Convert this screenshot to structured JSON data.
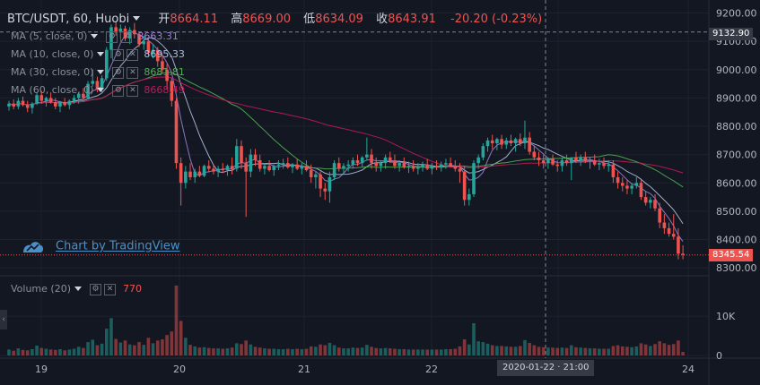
{
  "header": {
    "symbol": "BTC/USDT, 60, Huobi",
    "open_label": "开",
    "open": "8664.11",
    "high_label": "高",
    "high": "8669.00",
    "low_label": "低",
    "low": "8634.09",
    "close_label": "收",
    "close": "8643.91",
    "change": "-20.20 (-0.23%)"
  },
  "indicators": [
    {
      "label": "MA (5, close, 0)",
      "value": "8663.31",
      "color": "#9b7fd4"
    },
    {
      "label": "MA (10, close, 0)",
      "value": "8695.33",
      "color": "#b0bdde"
    },
    {
      "label": "MA (30, close, 0)",
      "value": "8681.81",
      "color": "#4caf50"
    },
    {
      "label": "MA (60, close, 0)",
      "value": "8668.49",
      "color": "#c2185b"
    }
  ],
  "volume_indicator": {
    "label": "Volume (20)",
    "value": "770"
  },
  "watermark": "Chart by TradingView",
  "crosshair_time": "2020-01-22 · 21:00",
  "icons": [
    "caret-down-icon",
    "gear-icon",
    "close-icon",
    "tradingview-logo-icon",
    "collapse-arrow-icon"
  ],
  "colors": {
    "up": "#26a69a",
    "down": "#ef5350",
    "background": "#131722"
  },
  "chart_data": {
    "type": "candlestick",
    "price_axis": {
      "ticks": [
        8300,
        8400,
        8500,
        8600,
        8700,
        8800,
        8900,
        9000,
        9100,
        9200
      ],
      "labels": [
        "8300.00",
        "8400.00",
        "8500.00",
        "8600.00",
        "8700.00",
        "8800.00",
        "8900.00",
        "9000.00",
        "9100.00",
        "9200.00"
      ],
      "ylim": [
        8272,
        9246
      ]
    },
    "volume_axis": {
      "ticks": [
        0,
        10000
      ],
      "labels": [
        "0",
        "10K"
      ],
      "ylim": [
        0,
        18000
      ]
    },
    "time_axis": {
      "labels": [
        "19",
        "20",
        "21",
        "22",
        "23",
        "24"
      ]
    },
    "current_price": "8345.54",
    "crosshair_price": "9132.90",
    "candles": [
      [
        8870,
        8890,
        8855,
        8880,
        1500
      ],
      [
        8880,
        8895,
        8860,
        8870,
        1200
      ],
      [
        8870,
        8900,
        8860,
        8890,
        1800
      ],
      [
        8890,
        8905,
        8870,
        8875,
        1400
      ],
      [
        8875,
        8890,
        8850,
        8865,
        1300
      ],
      [
        8865,
        8885,
        8845,
        8880,
        1600
      ],
      [
        8880,
        8920,
        8875,
        8910,
        2500
      ],
      [
        8910,
        8925,
        8880,
        8890,
        1900
      ],
      [
        8890,
        8905,
        8870,
        8900,
        1700
      ],
      [
        8900,
        8920,
        8880,
        8885,
        1500
      ],
      [
        8885,
        8900,
        8860,
        8870,
        1400
      ],
      [
        8870,
        8890,
        8850,
        8885,
        1600
      ],
      [
        8885,
        8900,
        8870,
        8875,
        1300
      ],
      [
        8875,
        8895,
        8860,
        8890,
        1500
      ],
      [
        8890,
        8910,
        8880,
        8900,
        1700
      ],
      [
        8900,
        8920,
        8880,
        8915,
        2200
      ],
      [
        8915,
        8935,
        8895,
        8900,
        1900
      ],
      [
        8900,
        8960,
        8895,
        8950,
        3400
      ],
      [
        8950,
        9000,
        8940,
        8960,
        4000
      ],
      [
        8960,
        8975,
        8920,
        8930,
        2600
      ],
      [
        8930,
        8980,
        8920,
        8970,
        3000
      ],
      [
        8970,
        9080,
        8960,
        9070,
        6800
      ],
      [
        9070,
        9160,
        9040,
        9150,
        9500
      ],
      [
        9150,
        9170,
        9120,
        9135,
        4200
      ],
      [
        9135,
        9160,
        9110,
        9145,
        3300
      ],
      [
        9145,
        9155,
        9100,
        9110,
        3800
      ],
      [
        9110,
        9150,
        9090,
        9140,
        2800
      ],
      [
        9140,
        9165,
        9110,
        9125,
        2600
      ],
      [
        9125,
        9135,
        9080,
        9090,
        3400
      ],
      [
        9090,
        9120,
        9070,
        9100,
        2700
      ],
      [
        9100,
        9110,
        9050,
        9060,
        4500
      ],
      [
        9060,
        9090,
        9040,
        9070,
        3100
      ],
      [
        9070,
        9080,
        9010,
        9030,
        3800
      ],
      [
        9030,
        9050,
        8990,
        9000,
        4100
      ],
      [
        9000,
        9020,
        8930,
        8960,
        5200
      ],
      [
        8960,
        8970,
        8870,
        8890,
        6100
      ],
      [
        8890,
        8900,
        8650,
        8670,
        17800
      ],
      [
        8670,
        8690,
        8520,
        8600,
        8800
      ],
      [
        8600,
        8660,
        8580,
        8640,
        4500
      ],
      [
        8640,
        8670,
        8610,
        8620,
        2700
      ],
      [
        8620,
        8650,
        8600,
        8640,
        2300
      ],
      [
        8640,
        8660,
        8620,
        8625,
        2000
      ],
      [
        8625,
        8665,
        8620,
        8660,
        2100
      ],
      [
        8660,
        8680,
        8640,
        8650,
        1900
      ],
      [
        8650,
        8665,
        8630,
        8640,
        1800
      ],
      [
        8640,
        8660,
        8620,
        8650,
        1800
      ],
      [
        8650,
        8670,
        8635,
        8645,
        1700
      ],
      [
        8645,
        8665,
        8625,
        8660,
        1800
      ],
      [
        8660,
        8690,
        8630,
        8650,
        2000
      ],
      [
        8650,
        8755,
        8640,
        8730,
        3100
      ],
      [
        8730,
        8750,
        8650,
        8670,
        2900
      ],
      [
        8670,
        8690,
        8480,
        8640,
        3800
      ],
      [
        8640,
        8720,
        8620,
        8700,
        2800
      ],
      [
        8700,
        8720,
        8660,
        8680,
        2200
      ],
      [
        8680,
        8700,
        8640,
        8650,
        2000
      ],
      [
        8650,
        8670,
        8630,
        8660,
        1800
      ],
      [
        8660,
        8680,
        8640,
        8645,
        1700
      ],
      [
        8645,
        8665,
        8625,
        8660,
        1700
      ],
      [
        8660,
        8680,
        8645,
        8665,
        1600
      ],
      [
        8665,
        8685,
        8650,
        8670,
        1600
      ],
      [
        8670,
        8690,
        8650,
        8655,
        1700
      ],
      [
        8655,
        8670,
        8635,
        8665,
        1600
      ],
      [
        8665,
        8685,
        8645,
        8650,
        1700
      ],
      [
        8650,
        8670,
        8630,
        8660,
        1600
      ],
      [
        8660,
        8680,
        8640,
        8645,
        1700
      ],
      [
        8645,
        8665,
        8600,
        8620,
        2300
      ],
      [
        8620,
        8640,
        8580,
        8630,
        2200
      ],
      [
        8630,
        8640,
        8550,
        8580,
        2800
      ],
      [
        8580,
        8600,
        8540,
        8570,
        2600
      ],
      [
        8570,
        8640,
        8530,
        8620,
        3200
      ],
      [
        8620,
        8680,
        8610,
        8670,
        2600
      ],
      [
        8670,
        8690,
        8640,
        8650,
        2000
      ],
      [
        8650,
        8670,
        8630,
        8660,
        1800
      ],
      [
        8660,
        8680,
        8640,
        8665,
        1800
      ],
      [
        8665,
        8690,
        8650,
        8680,
        2000
      ],
      [
        8680,
        8700,
        8660,
        8670,
        1900
      ],
      [
        8670,
        8695,
        8655,
        8690,
        2000
      ],
      [
        8690,
        8760,
        8680,
        8700,
        2700
      ],
      [
        8700,
        8720,
        8650,
        8670,
        2200
      ],
      [
        8670,
        8690,
        8640,
        8660,
        1900
      ],
      [
        8660,
        8680,
        8640,
        8670,
        1800
      ],
      [
        8670,
        8700,
        8650,
        8690,
        1900
      ],
      [
        8690,
        8710,
        8670,
        8680,
        1800
      ],
      [
        8680,
        8700,
        8650,
        8660,
        1700
      ],
      [
        8660,
        8680,
        8640,
        8670,
        1600
      ],
      [
        8670,
        8690,
        8650,
        8655,
        1600
      ],
      [
        8655,
        8675,
        8635,
        8660,
        1500
      ],
      [
        8660,
        8680,
        8640,
        8650,
        1500
      ],
      [
        8650,
        8670,
        8630,
        8655,
        1500
      ],
      [
        8655,
        8675,
        8640,
        8665,
        1500
      ],
      [
        8665,
        8685,
        8645,
        8650,
        1500
      ],
      [
        8650,
        8670,
        8630,
        8660,
        1500
      ],
      [
        8660,
        8680,
        8645,
        8655,
        1500
      ],
      [
        8655,
        8675,
        8640,
        8665,
        1500
      ],
      [
        8665,
        8685,
        8650,
        8670,
        1600
      ],
      [
        8670,
        8690,
        8655,
        8660,
        1600
      ],
      [
        8660,
        8680,
        8640,
        8650,
        1700
      ],
      [
        8650,
        8670,
        8600,
        8640,
        2300
      ],
      [
        8640,
        8660,
        8520,
        8540,
        4100
      ],
      [
        8540,
        8580,
        8520,
        8560,
        2800
      ],
      [
        8560,
        8680,
        8550,
        8670,
        8200
      ],
      [
        8670,
        8700,
        8650,
        8690,
        3600
      ],
      [
        8690,
        8740,
        8680,
        8730,
        3400
      ],
      [
        8730,
        8760,
        8710,
        8750,
        3000
      ],
      [
        8750,
        8770,
        8720,
        8740,
        2600
      ],
      [
        8740,
        8760,
        8715,
        8755,
        2400
      ],
      [
        8755,
        8770,
        8720,
        8735,
        2400
      ],
      [
        8735,
        8760,
        8720,
        8750,
        2300
      ],
      [
        8750,
        8770,
        8730,
        8740,
        2200
      ],
      [
        8740,
        8760,
        8710,
        8755,
        2200
      ],
      [
        8755,
        8775,
        8730,
        8740,
        2400
      ],
      [
        8740,
        8820,
        8720,
        8760,
        3900
      ],
      [
        8760,
        8780,
        8700,
        8710,
        3200
      ],
      [
        8710,
        8730,
        8680,
        8690,
        2600
      ],
      [
        8690,
        8710,
        8660,
        8680,
        2200
      ],
      [
        8680,
        8700,
        8650,
        8670,
        2100
      ],
      [
        8670,
        8690,
        8650,
        8685,
        2000
      ],
      [
        8685,
        8700,
        8660,
        8665,
        2000
      ],
      [
        8665,
        8680,
        8640,
        8660,
        1900
      ],
      [
        8660,
        8690,
        8640,
        8680,
        2000
      ],
      [
        8680,
        8700,
        8660,
        8670,
        1900
      ],
      [
        8670,
        8690,
        8610,
        8690,
        2600
      ],
      [
        8690,
        8710,
        8670,
        8680,
        2100
      ],
      [
        8680,
        8700,
        8660,
        8690,
        2000
      ],
      [
        8690,
        8710,
        8670,
        8675,
        1900
      ],
      [
        8675,
        8690,
        8650,
        8680,
        1800
      ],
      [
        8680,
        8700,
        8660,
        8665,
        1800
      ],
      [
        8665,
        8685,
        8645,
        8670,
        1700
      ],
      [
        8670,
        8690,
        8650,
        8660,
        1700
      ],
      [
        8660,
        8680,
        8640,
        8665,
        1700
      ],
      [
        8665,
        8680,
        8600,
        8620,
        2400
      ],
      [
        8620,
        8640,
        8580,
        8600,
        2600
      ],
      [
        8600,
        8620,
        8570,
        8590,
        2300
      ],
      [
        8590,
        8610,
        8560,
        8580,
        2200
      ],
      [
        8580,
        8600,
        8560,
        8590,
        2100
      ],
      [
        8590,
        8620,
        8580,
        8600,
        2300
      ],
      [
        8600,
        8610,
        8540,
        8550,
        3100
      ],
      [
        8550,
        8570,
        8520,
        8530,
        2800
      ],
      [
        8530,
        8550,
        8510,
        8540,
        2400
      ],
      [
        8540,
        8560,
        8500,
        8510,
        2900
      ],
      [
        8510,
        8530,
        8440,
        8460,
        3600
      ],
      [
        8460,
        8490,
        8420,
        8440,
        3100
      ],
      [
        8440,
        8460,
        8410,
        8420,
        2700
      ],
      [
        8420,
        8490,
        8400,
        8410,
        2900
      ],
      [
        8410,
        8440,
        8330,
        8350,
        3800
      ],
      [
        8350,
        8380,
        8330,
        8346,
        900
      ]
    ]
  }
}
